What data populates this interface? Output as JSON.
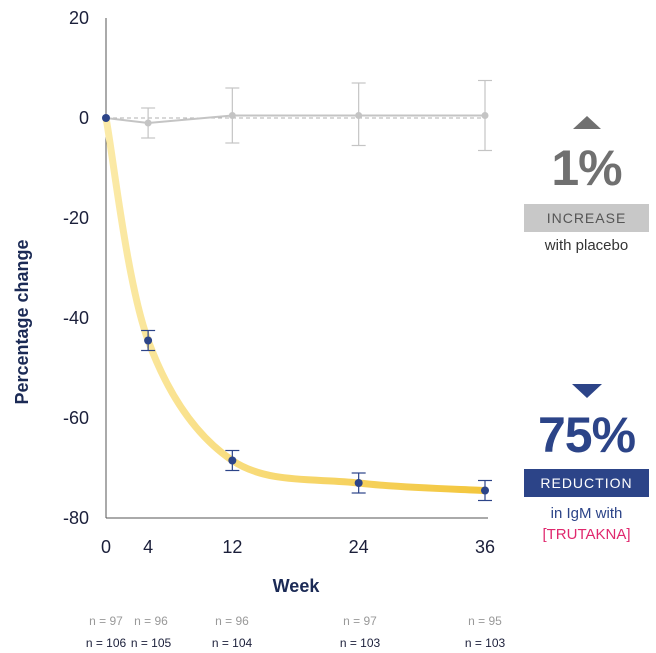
{
  "chart_data": {
    "type": "line",
    "xlabel": "Week",
    "ylabel": "Percentage change",
    "x": [
      0,
      4,
      12,
      24,
      36
    ],
    "x_ticks": [
      0,
      4,
      12,
      24,
      36
    ],
    "y_ticks": [
      20,
      0,
      -20,
      -40,
      -60,
      -80
    ],
    "ylim": [
      -80,
      20
    ],
    "xlim": [
      0,
      36
    ],
    "grid": false,
    "reference_line": 0,
    "series": [
      {
        "values": [
          0,
          -1,
          0.5,
          0.5,
          0.5
        ],
        "error_low": [
          0,
          -4,
          -5,
          -5.5,
          -6.5
        ],
        "error_high": [
          0,
          2,
          6,
          7,
          7.5
        ],
        "color": "#c4c4c4",
        "n": [
          "n = 97",
          "n = 96",
          "n = 96",
          "n = 97",
          "n = 95"
        ]
      },
      {
        "values": [
          0,
          -44.5,
          -68.5,
          -73,
          -74.5
        ],
        "error_low": [
          0,
          -46.5,
          -70.5,
          -75,
          -76.5
        ],
        "error_high": [
          0,
          -42.5,
          -66.5,
          -71,
          -72.5
        ],
        "color": "#f5c842",
        "marker_color": "#2c4488",
        "n": [
          "n = 106",
          "n = 105",
          "n = 104",
          "n = 103",
          "n = 103"
        ]
      }
    ]
  },
  "callouts": {
    "placebo": {
      "value": "1%",
      "band": "INCREASE",
      "sub": "with placebo",
      "color": "#707070",
      "band_color": "#c8c8c8"
    },
    "drug": {
      "value": "75%",
      "band": "REDUCTION",
      "sub_line1": "in IgM with",
      "sub_line2": "[TRUTAKNA]",
      "color": "#2c4488",
      "band_color": "#2c4488",
      "highlight_color": "#e0286e"
    }
  },
  "n_label_colors": {
    "placebo": "#999999",
    "drug": "#1b1f3a"
  }
}
